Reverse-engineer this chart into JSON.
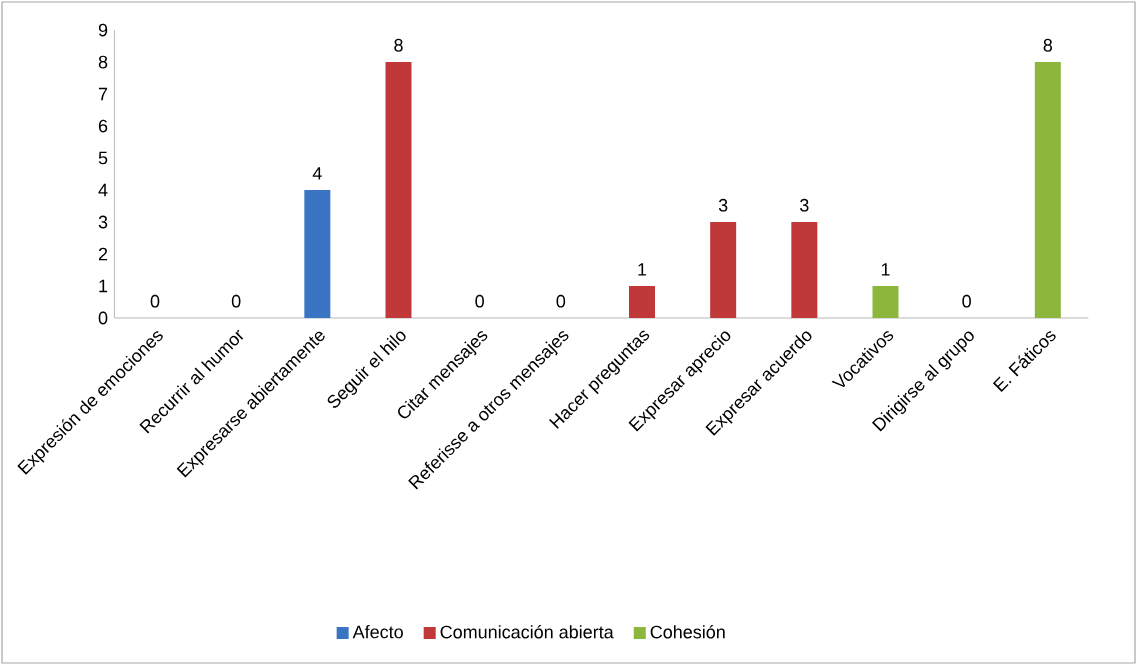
{
  "chart_data": {
    "type": "bar",
    "categories": [
      "Expresión de emociones",
      "Recurrir al humor",
      "Expresarse abiertamente",
      "Seguir el hilo",
      "Citar mensajes",
      "Referisse a otros mensajes",
      "Hacer preguntas",
      "Expresar aprecio",
      "Expresar acuerdo",
      "Vocativos",
      "Dirigirse al grupo",
      "E. Fáticos"
    ],
    "series": [
      {
        "name": "Afecto",
        "color": "#3a75c4",
        "values": [
          0,
          0,
          4,
          null,
          null,
          null,
          null,
          null,
          null,
          null,
          null,
          null
        ]
      },
      {
        "name": "Comunicación abierta",
        "color": "#c0383a",
        "values": [
          null,
          null,
          null,
          8,
          0,
          0,
          1,
          3,
          3,
          null,
          null,
          null
        ]
      },
      {
        "name": "Cohesión",
        "color": "#8cb63c",
        "values": [
          null,
          null,
          null,
          null,
          null,
          null,
          null,
          null,
          null,
          1,
          0,
          8
        ]
      }
    ],
    "ylim": [
      0,
      9
    ],
    "yticks": [
      0,
      1,
      2,
      3,
      4,
      5,
      6,
      7,
      8,
      9
    ],
    "data_labels": true,
    "legend": "bottom",
    "grid": false
  }
}
